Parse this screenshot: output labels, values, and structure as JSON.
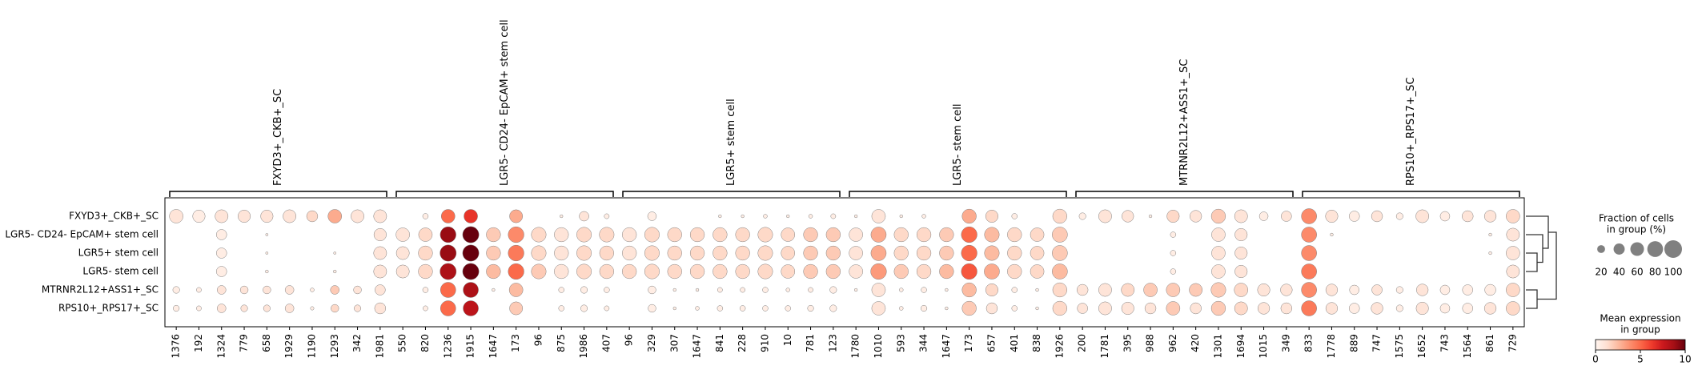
{
  "chart_data": {
    "type": "dotplot",
    "var_groups": [
      {
        "name": "FXYD3+_CKB+_SC",
        "genes": [
          "1376",
          "192",
          "1324",
          "779",
          "658",
          "1929",
          "1190",
          "1293",
          "342",
          "1981"
        ]
      },
      {
        "name": "LGR5- CD24- EpCAM+ stem cell",
        "genes": [
          "550",
          "820",
          "1236",
          "1915",
          "1647",
          "173",
          "96",
          "875",
          "1986",
          "407"
        ]
      },
      {
        "name": "LGR5+ stem cell",
        "genes": [
          "96",
          "329",
          "307",
          "1647",
          "841",
          "228",
          "910",
          "10",
          "781",
          "123"
        ]
      },
      {
        "name": "LGR5- stem cell",
        "genes": [
          "1780",
          "1010",
          "593",
          "344",
          "1647",
          "173",
          "657",
          "401",
          "838",
          "1926"
        ]
      },
      {
        "name": "MTRNR2L12+ASS1+_SC",
        "genes": [
          "200",
          "1781",
          "395",
          "988",
          "962",
          "420",
          "1301",
          "1694",
          "1015",
          "349"
        ]
      },
      {
        "name": "RPS10+_RPS17+_SC",
        "genes": [
          "833",
          "1778",
          "889",
          "747",
          "1575",
          "1652",
          "743",
          "1564",
          "861",
          "729"
        ]
      }
    ],
    "rows": [
      {
        "name": "FXYD3+_CKB+_SC",
        "fraction": [
          60,
          50,
          55,
          50,
          50,
          55,
          40,
          60,
          55,
          55,
          0,
          10,
          60,
          60,
          0,
          55,
          0,
          3,
          30,
          8,
          0,
          25,
          0,
          0,
          3,
          3,
          5,
          3,
          5,
          8,
          3,
          60,
          3,
          5,
          0,
          65,
          50,
          10,
          0,
          65,
          15,
          55,
          45,
          3,
          50,
          45,
          65,
          55,
          25,
          35,
          75,
          50,
          35,
          40,
          15,
          55,
          30,
          40,
          45,
          60
        ],
        "expression": [
          1,
          0.5,
          1,
          1,
          1,
          1,
          1.5,
          3,
          1,
          1,
          0,
          0.5,
          5,
          6.5,
          0,
          3,
          0,
          0.5,
          1,
          0.5,
          0,
          0.5,
          0,
          0,
          0.5,
          0.5,
          0.5,
          0.5,
          0.5,
          0.5,
          0.5,
          1,
          0.5,
          0.5,
          0,
          3,
          1.5,
          0.5,
          0,
          1.5,
          0.5,
          1,
          1,
          0.5,
          1.5,
          1,
          2,
          1,
          0.5,
          1,
          4,
          1,
          0.5,
          1,
          0.5,
          1,
          0.5,
          1,
          1,
          1.5
        ]
      },
      {
        "name": "LGR5- CD24- EpCAM+ stem cell",
        "fraction": [
          0,
          0,
          35,
          0,
          2,
          0,
          0,
          0,
          0,
          50,
          60,
          60,
          80,
          85,
          65,
          80,
          70,
          65,
          70,
          70,
          65,
          70,
          65,
          65,
          65,
          65,
          70,
          60,
          65,
          65,
          60,
          75,
          65,
          65,
          65,
          80,
          70,
          65,
          60,
          75,
          0,
          0,
          0,
          0,
          10,
          0,
          60,
          50,
          0,
          0,
          75,
          3,
          0,
          0,
          0,
          0,
          0,
          0,
          3,
          55
        ],
        "expression": [
          0,
          0,
          0.5,
          0,
          0.5,
          0,
          0,
          0,
          0,
          1,
          1,
          1.5,
          9,
          10,
          2,
          4,
          1.5,
          1,
          1.5,
          1.5,
          1,
          1.5,
          1.5,
          1.5,
          1.5,
          1.5,
          1.5,
          1.5,
          2,
          2,
          1,
          3,
          1.5,
          1.5,
          2,
          5,
          2.5,
          1.5,
          1.5,
          2,
          0,
          0,
          0,
          0,
          0.5,
          0,
          1,
          1,
          0,
          0,
          4,
          0.5,
          0,
          0,
          0,
          0,
          0,
          0,
          0.5,
          1
        ]
      },
      {
        "name": "LGR5+ stem cell",
        "fraction": [
          0,
          0,
          35,
          0,
          2,
          0,
          0,
          2,
          0,
          55,
          55,
          65,
          85,
          85,
          65,
          80,
          70,
          65,
          70,
          65,
          65,
          70,
          65,
          65,
          65,
          65,
          70,
          60,
          65,
          65,
          60,
          75,
          65,
          65,
          65,
          80,
          70,
          65,
          60,
          75,
          0,
          0,
          0,
          0,
          10,
          0,
          60,
          50,
          0,
          0,
          75,
          0,
          0,
          0,
          0,
          0,
          0,
          0,
          3,
          60
        ],
        "expression": [
          0,
          0,
          0.5,
          0,
          0.5,
          0,
          0,
          0.5,
          0,
          1,
          1,
          1.5,
          9,
          10,
          2,
          4.5,
          1.5,
          1,
          1.5,
          1.5,
          1,
          1.5,
          1.5,
          1.5,
          1.5,
          1.5,
          1.5,
          1.5,
          2,
          2,
          1,
          3,
          1.5,
          1.5,
          2,
          5,
          2.5,
          1.5,
          1.5,
          2,
          0,
          0,
          0,
          0,
          0.5,
          0,
          1,
          1,
          0,
          0,
          4,
          0,
          0,
          0,
          0,
          0,
          0,
          0,
          0.5,
          1
        ]
      },
      {
        "name": "LGR5- stem cell",
        "fraction": [
          0,
          0,
          35,
          0,
          3,
          0,
          0,
          3,
          0,
          55,
          55,
          65,
          85,
          85,
          65,
          80,
          70,
          65,
          70,
          65,
          65,
          70,
          65,
          65,
          65,
          65,
          70,
          60,
          65,
          65,
          60,
          80,
          65,
          65,
          65,
          80,
          75,
          65,
          60,
          75,
          0,
          0,
          0,
          0,
          10,
          0,
          60,
          50,
          0,
          0,
          75,
          0,
          0,
          0,
          0,
          0,
          0,
          0,
          0,
          55
        ],
        "expression": [
          0,
          0,
          0.5,
          0,
          0.5,
          0,
          0,
          0.5,
          0,
          1,
          1,
          1.5,
          8.5,
          10,
          2.5,
          5,
          2,
          1,
          1.5,
          1.5,
          1.5,
          1.5,
          1.5,
          1.5,
          1.5,
          1.5,
          1.5,
          1.5,
          2,
          2,
          1,
          3.5,
          2,
          1.5,
          2.5,
          5.5,
          3,
          1.5,
          1.5,
          2.5,
          0,
          0,
          0,
          0,
          0.5,
          0,
          1,
          1,
          0,
          0,
          4.5,
          0,
          0,
          0,
          0,
          0,
          0,
          0,
          0,
          1
        ]
      },
      {
        "name": "MTRNR2L12+ASS1+_SC",
        "fraction": [
          15,
          8,
          25,
          20,
          20,
          25,
          5,
          25,
          20,
          35,
          0,
          10,
          75,
          75,
          3,
          60,
          0,
          10,
          15,
          10,
          0,
          20,
          3,
          3,
          8,
          8,
          10,
          5,
          8,
          15,
          3,
          60,
          5,
          10,
          3,
          65,
          50,
          10,
          3,
          65,
          40,
          55,
          55,
          60,
          60,
          55,
          70,
          60,
          50,
          45,
          75,
          45,
          30,
          35,
          15,
          45,
          30,
          35,
          40,
          60
        ],
        "expression": [
          0.5,
          0.5,
          1,
          1,
          1,
          1,
          0.5,
          2,
          1,
          1,
          0,
          0.5,
          5,
          8.5,
          0.5,
          2.5,
          0,
          0.5,
          0.5,
          0.5,
          0,
          0.5,
          0.5,
          0.5,
          0.5,
          0.5,
          0.5,
          0.5,
          0.5,
          0.5,
          0.5,
          1,
          0.5,
          0.5,
          0.5,
          2.5,
          1.5,
          0.5,
          0.5,
          1.5,
          1,
          1,
          1.5,
          2,
          2,
          2,
          2,
          1.5,
          1,
          1,
          4,
          1,
          0.5,
          1,
          0.5,
          1,
          0.5,
          0.5,
          0.5,
          1.5
        ]
      },
      {
        "name": "RPS10+_RPS17+_SC",
        "fraction": [
          12,
          8,
          25,
          15,
          15,
          25,
          4,
          20,
          15,
          40,
          0,
          8,
          75,
          75,
          0,
          55,
          0,
          10,
          15,
          8,
          0,
          20,
          3,
          5,
          10,
          10,
          10,
          10,
          12,
          15,
          0,
          60,
          5,
          12,
          3,
          65,
          40,
          10,
          3,
          65,
          35,
          55,
          50,
          40,
          60,
          40,
          65,
          55,
          45,
          40,
          75,
          45,
          35,
          45,
          15,
          50,
          30,
          35,
          45,
          60
        ],
        "expression": [
          0.5,
          0.5,
          1,
          1,
          1,
          1,
          0.5,
          1.5,
          1,
          1,
          0,
          0.5,
          5,
          8,
          0,
          2,
          0,
          0.5,
          0.5,
          0.5,
          0,
          0.5,
          0.5,
          0.5,
          0.5,
          0.5,
          0.5,
          0.5,
          0.5,
          0.5,
          0,
          1,
          0.5,
          0.5,
          0.5,
          2,
          1,
          0.5,
          0.5,
          1.5,
          1,
          1,
          1,
          1,
          2,
          1,
          2,
          1.5,
          1,
          1,
          4.5,
          1,
          0.5,
          1,
          0.5,
          1,
          0.5,
          0.5,
          1,
          1.5
        ]
      }
    ],
    "size_legend": {
      "title_lines": [
        "Fraction of cells",
        "in group (%)"
      ],
      "size_lim": [
        0,
        100
      ],
      "ticks": [
        20,
        40,
        60,
        80,
        100
      ],
      "color": "#808080"
    },
    "color_legend": {
      "title_lines": [
        "Mean expression",
        "in group"
      ],
      "clim": [
        0,
        10
      ],
      "ticks": [
        0,
        5,
        10
      ],
      "colors": [
        "#fff5f0",
        "#fee0d2",
        "#fcbba1",
        "#fc9272",
        "#fb6a4a",
        "#ef3b2c",
        "#cb181d",
        "#a50f15",
        "#67000d"
      ]
    }
  }
}
